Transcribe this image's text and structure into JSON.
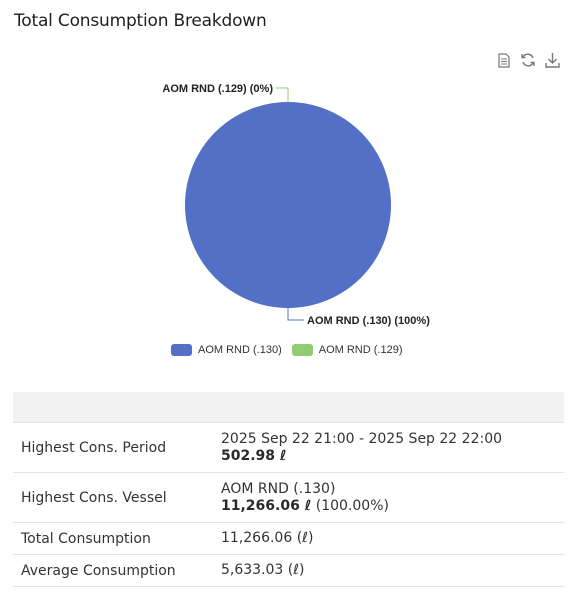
{
  "title": "Total Consumption Breakdown",
  "toolbar": {
    "icons": [
      "document-icon",
      "refresh-icon",
      "download-icon"
    ]
  },
  "chart_data": {
    "type": "pie",
    "slices": [
      {
        "label": "AOM RND (.130) (100%)",
        "name": "AOM RND (.130)",
        "value": 11266.06,
        "percent": 100,
        "color": "#5470c6"
      },
      {
        "label": "AOM RND (.129) (0%)",
        "name": "AOM RND (.129)",
        "value": 0,
        "percent": 0,
        "color": "#91cc75"
      }
    ],
    "legend": [
      "AOM RND (.130)",
      "AOM RND (.129)"
    ],
    "legend_position": "bottom-center"
  },
  "summary": {
    "rows": [
      {
        "label": "Highest Cons. Period",
        "line1": "2025 Sep 22 21:00 - 2025 Sep 22 22:00",
        "bold": "502.98 ℓ",
        "extra": ""
      },
      {
        "label": "Highest Cons. Vessel",
        "line1": "AOM RND (.130)",
        "bold": "11,266.06 ℓ",
        "extra": " (100.00%)"
      },
      {
        "label": "Total Consumption",
        "line1": "11,266.06 (ℓ)"
      },
      {
        "label": "Average Consumption",
        "line1": "5,633.03 (ℓ)"
      }
    ]
  }
}
